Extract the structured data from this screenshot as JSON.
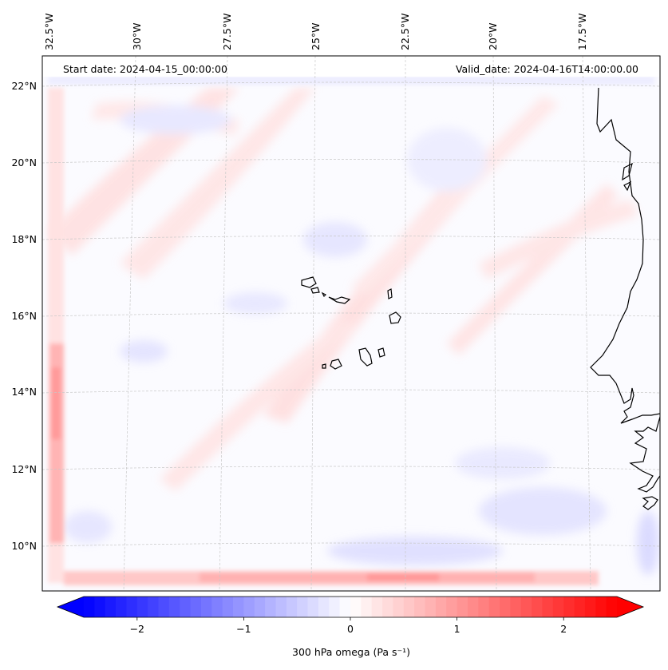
{
  "map": {
    "start_date_text": "Start date: 2024-04-15_00:00:00",
    "valid_date_text": "Valid_date: 2024-04-16T14:00:00.00",
    "lon_labels": [
      "32.5°W",
      "30°W",
      "27.5°W",
      "25°W",
      "22.5°W",
      "20°W",
      "17.5°W"
    ],
    "lat_labels": [
      "22°N",
      "20°N",
      "18°N",
      "16°N",
      "14°N",
      "12°N",
      "10°N"
    ],
    "field_colors": {
      "weak_positive": "#ffe4e4",
      "positive": "#ffb8b8",
      "strong_positive": "#ff8a8a",
      "weak_negative": "#e9e9ff",
      "negative": "#d2d2ff",
      "coastline": "#000000",
      "gridline": "#c8c8c8"
    }
  },
  "colorbar": {
    "label": "300 hPa omega (Pa s⁻¹)",
    "ticks": [
      "−2",
      "−1",
      "0",
      "1",
      "2"
    ],
    "tick_values": [
      -2,
      -1,
      0,
      1,
      2
    ],
    "range": [
      -2.5,
      2.5
    ],
    "extend": "both",
    "colormap": "bwr",
    "low_color": "#0000ff",
    "mid_color": "#ffffff",
    "high_color": "#ff0000"
  }
}
